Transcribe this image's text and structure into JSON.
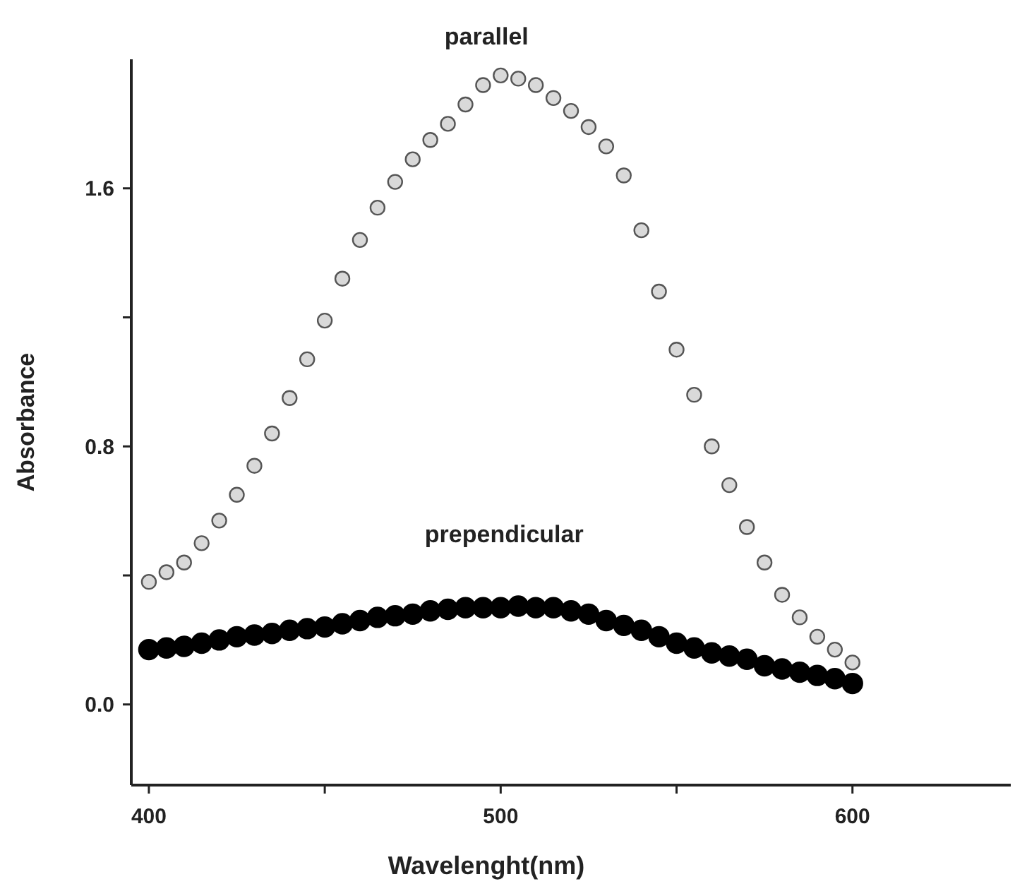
{
  "chart_data": {
    "type": "scatter",
    "xlabel": "Wavelenght(nm)",
    "ylabel": "Absorbance",
    "xlim": [
      395,
      645
    ],
    "ylim": [
      -0.25,
      2.0
    ],
    "xticks": [
      400,
      {
        "value": 450,
        "label": null
      },
      500,
      {
        "value": 550,
        "label": null
      },
      600
    ],
    "yticks": [
      {
        "value": 0,
        "label": "0.0"
      },
      {
        "value": 0.4,
        "label": null
      },
      0.8,
      {
        "value": 1.2,
        "label": null
      },
      1.6
    ],
    "marker": "circle",
    "grid": false,
    "x": [
      400,
      405,
      410,
      415,
      420,
      425,
      430,
      435,
      440,
      445,
      450,
      455,
      460,
      465,
      470,
      475,
      480,
      485,
      490,
      495,
      500,
      505,
      510,
      515,
      520,
      525,
      530,
      535,
      540,
      545,
      550,
      555,
      560,
      565,
      570,
      575,
      580,
      585,
      590,
      595,
      600
    ],
    "series": [
      {
        "name": "parallel",
        "color": "#d9d9d9",
        "values": [
          0.38,
          0.41,
          0.44,
          0.5,
          0.57,
          0.65,
          0.74,
          0.84,
          0.95,
          1.07,
          1.19,
          1.32,
          1.44,
          1.54,
          1.62,
          1.69,
          1.75,
          1.8,
          1.86,
          1.92,
          1.95,
          1.94,
          1.92,
          1.88,
          1.84,
          1.79,
          1.73,
          1.64,
          1.47,
          1.28,
          1.1,
          0.96,
          0.8,
          0.68,
          0.55,
          0.44,
          0.34,
          0.27,
          0.21,
          0.17,
          0.13
        ]
      },
      {
        "name": "prependicular",
        "color": "#000000",
        "values": [
          0.17,
          0.175,
          0.18,
          0.19,
          0.2,
          0.21,
          0.215,
          0.22,
          0.23,
          0.235,
          0.24,
          0.25,
          0.26,
          0.27,
          0.275,
          0.28,
          0.29,
          0.295,
          0.3,
          0.3,
          0.3,
          0.305,
          0.3,
          0.3,
          0.29,
          0.28,
          0.26,
          0.245,
          0.23,
          0.21,
          0.19,
          0.175,
          0.16,
          0.15,
          0.14,
          0.12,
          0.11,
          0.1,
          0.09,
          0.08,
          0.065
        ]
      }
    ]
  }
}
